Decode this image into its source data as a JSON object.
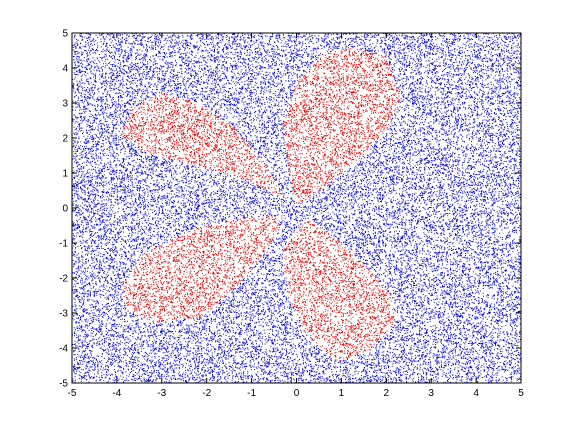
{
  "chart_data": {
    "type": "scatter",
    "title": "",
    "xlabel": "",
    "ylabel": "",
    "xlim": [
      -5,
      5
    ],
    "ylim": [
      -5,
      5
    ],
    "xticks": [
      -5,
      -4,
      -3,
      -2,
      -1,
      0,
      1,
      2,
      3,
      4,
      5
    ],
    "yticks": [
      -5,
      -4,
      -3,
      -2,
      -1,
      0,
      1,
      2,
      3,
      4,
      5
    ],
    "xtick_labels": [
      "-5",
      "-4",
      "-3",
      "-2",
      "-1",
      "0",
      "1",
      "2",
      "3",
      "4",
      "5"
    ],
    "ytick_labels": [
      "-5",
      "-4",
      "-3",
      "-2",
      "-1",
      "0",
      "1",
      "2",
      "3",
      "4",
      "5"
    ],
    "grid": false,
    "legend": "none",
    "background_distribution": "uniform random points over [-5,5] x [-5,5]",
    "series": [
      {
        "color": "#0000cc",
        "point_count": 26000,
        "region": "outside the four petals"
      },
      {
        "color": "#dd0000",
        "point_count": 9000,
        "region": "inside four petals",
        "petals": [
          {
            "quadrant": "upper-right",
            "outline": [
              [
                0.0,
                0.1
              ],
              [
                -0.2,
                1.2
              ],
              [
                -0.3,
                2.4
              ],
              [
                0.0,
                3.6
              ],
              [
                0.6,
                4.4
              ],
              [
                1.3,
                4.6
              ],
              [
                2.0,
                4.3
              ],
              [
                2.3,
                3.2
              ],
              [
                2.0,
                2.2
              ],
              [
                1.4,
                1.4
              ],
              [
                0.6,
                0.6
              ]
            ]
          },
          {
            "quadrant": "upper-left",
            "outline": [
              [
                -0.2,
                0.2
              ],
              [
                -1.1,
                0.8
              ],
              [
                -2.2,
                1.2
              ],
              [
                -3.4,
                1.6
              ],
              [
                -3.9,
                2.1
              ],
              [
                -3.7,
                2.8
              ],
              [
                -3.1,
                3.3
              ],
              [
                -2.2,
                3.0
              ],
              [
                -1.4,
                2.3
              ],
              [
                -0.7,
                1.2
              ]
            ]
          },
          {
            "quadrant": "lower-left",
            "outline": [
              [
                -0.3,
                -0.2
              ],
              [
                -1.2,
                -0.3
              ],
              [
                -2.3,
                -0.6
              ],
              [
                -3.4,
                -1.3
              ],
              [
                -3.9,
                -2.2
              ],
              [
                -3.8,
                -2.9
              ],
              [
                -3.1,
                -3.3
              ],
              [
                -2.1,
                -3.1
              ],
              [
                -1.3,
                -2.2
              ],
              [
                -0.6,
                -1.1
              ]
            ]
          },
          {
            "quadrant": "lower-right",
            "outline": [
              [
                0.2,
                -0.3
              ],
              [
                -0.3,
                -1.2
              ],
              [
                -0.2,
                -2.5
              ],
              [
                0.2,
                -3.6
              ],
              [
                0.9,
                -4.4
              ],
              [
                1.6,
                -4.1
              ],
              [
                2.2,
                -3.3
              ],
              [
                2.1,
                -2.5
              ],
              [
                1.5,
                -1.6
              ],
              [
                0.8,
                -0.8
              ]
            ]
          }
        ]
      }
    ]
  }
}
